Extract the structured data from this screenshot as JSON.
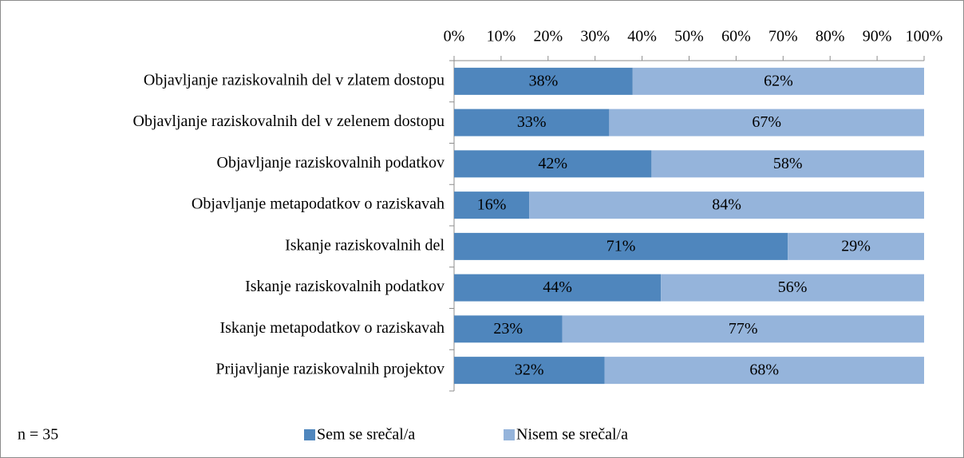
{
  "chart_data": {
    "type": "stacked_barh",
    "categories": [
      "Objavljanje raziskovalnih del v zlatem dostopu",
      "Objavljanje raziskovalnih del v zelenem dostopu",
      "Objavljanje raziskovalnih podatkov",
      "Objavljanje metapodatkov o raziskavah",
      "Iskanje raziskovalnih del",
      "Iskanje raziskovalnih podatkov",
      "Iskanje metapodatkov o raziskavah",
      "Prijavljanje raziskovalnih projektov"
    ],
    "series": [
      {
        "name": "Sem se srečal/a",
        "color": "#4f86bd",
        "values": [
          38,
          33,
          42,
          16,
          71,
          44,
          23,
          32
        ],
        "value_labels": [
          "38%",
          "33%",
          "42%",
          "16%",
          "71%",
          "44%",
          "23%",
          "32%"
        ]
      },
      {
        "name": "Nisem se srečal/a",
        "color": "#95b4db",
        "values": [
          62,
          67,
          58,
          84,
          29,
          56,
          77,
          68
        ],
        "value_labels": [
          "62%",
          "67%",
          "58%",
          "84%",
          "29%",
          "56%",
          "77%",
          "68%"
        ]
      }
    ],
    "xlim": [
      0,
      100
    ],
    "xticks": [
      {
        "value": 0,
        "label": "0%"
      },
      {
        "value": 10,
        "label": "10%"
      },
      {
        "value": 20,
        "label": "20%"
      },
      {
        "value": 30,
        "label": "30%"
      },
      {
        "value": 40,
        "label": "40%"
      },
      {
        "value": 50,
        "label": "50%"
      },
      {
        "value": 60,
        "label": "60%"
      },
      {
        "value": 70,
        "label": "70%"
      },
      {
        "value": 80,
        "label": "80%"
      },
      {
        "value": 90,
        "label": "90%"
      },
      {
        "value": 100,
        "label": "100%"
      }
    ],
    "annotation": "n = 35",
    "legend": "bottom"
  }
}
